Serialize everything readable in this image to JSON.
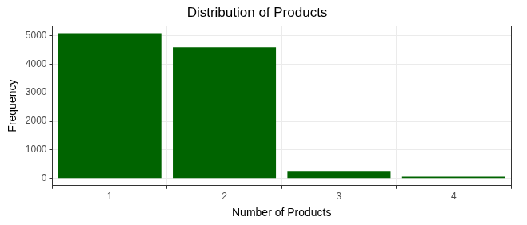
{
  "chart_data": {
    "type": "bar",
    "title": "Distribution of Products",
    "x_label": "Number of Products",
    "y_label": "Frequency",
    "categories": [
      "1",
      "2",
      "3",
      "4"
    ],
    "values": [
      5084,
      4590,
      266,
      60
    ],
    "color": "#006400",
    "ylim": [
      -254,
      5338
    ],
    "yticks": [
      0,
      1000,
      2000,
      3000,
      4000,
      5000
    ],
    "grid": true
  }
}
